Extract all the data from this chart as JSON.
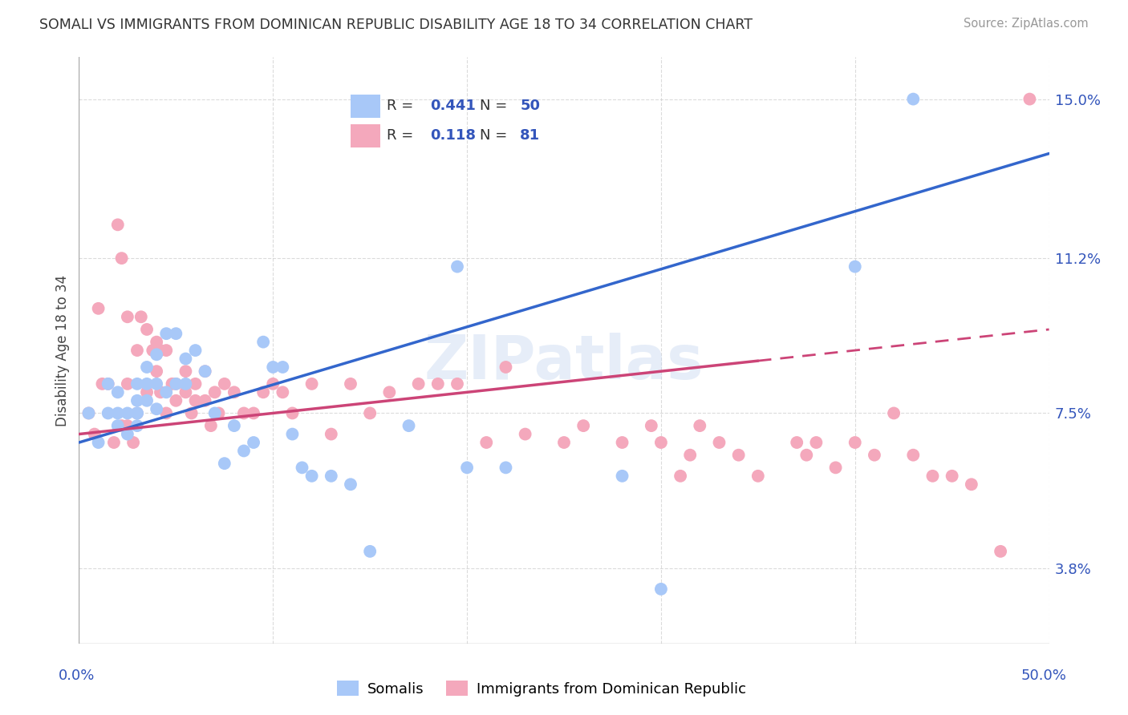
{
  "title": "SOMALI VS IMMIGRANTS FROM DOMINICAN REPUBLIC DISABILITY AGE 18 TO 34 CORRELATION CHART",
  "source": "Source: ZipAtlas.com",
  "ylabel": "Disability Age 18 to 34",
  "xlim": [
    0.0,
    0.5
  ],
  "ylim": [
    0.02,
    0.16
  ],
  "yticks": [
    0.038,
    0.075,
    0.112,
    0.15
  ],
  "yticklabels": [
    "3.8%",
    "7.5%",
    "11.2%",
    "15.0%"
  ],
  "xtick_show": [
    0.0,
    0.5
  ],
  "xticklabels": [
    "0.0%",
    "50.0%"
  ],
  "somali_R": "0.441",
  "somali_N": "50",
  "dr_R": "0.118",
  "dr_N": "81",
  "somali_color": "#a8c8f8",
  "dr_color": "#f4a8bc",
  "somali_line_color": "#3366cc",
  "dr_line_color": "#cc4477",
  "legend_text_color": "#3355bb",
  "background_color": "#ffffff",
  "grid_color": "#cccccc",
  "watermark": "ZIPatlas",
  "watermark_color": "#c8d8f0",
  "somali_line_y0": 0.068,
  "somali_line_y1": 0.137,
  "dr_line_y0": 0.07,
  "dr_line_y1": 0.095,
  "somali_x": [
    0.005,
    0.01,
    0.015,
    0.015,
    0.02,
    0.02,
    0.02,
    0.025,
    0.025,
    0.03,
    0.03,
    0.03,
    0.03,
    0.03,
    0.035,
    0.035,
    0.035,
    0.04,
    0.04,
    0.04,
    0.045,
    0.045,
    0.05,
    0.05,
    0.055,
    0.055,
    0.06,
    0.065,
    0.07,
    0.075,
    0.08,
    0.085,
    0.09,
    0.095,
    0.1,
    0.105,
    0.11,
    0.115,
    0.12,
    0.13,
    0.14,
    0.15,
    0.17,
    0.195,
    0.2,
    0.22,
    0.28,
    0.3,
    0.4,
    0.43
  ],
  "somali_y": [
    0.075,
    0.068,
    0.082,
    0.075,
    0.072,
    0.075,
    0.08,
    0.07,
    0.075,
    0.075,
    0.072,
    0.078,
    0.082,
    0.075,
    0.078,
    0.082,
    0.086,
    0.076,
    0.082,
    0.089,
    0.094,
    0.08,
    0.082,
    0.094,
    0.082,
    0.088,
    0.09,
    0.085,
    0.075,
    0.063,
    0.072,
    0.066,
    0.068,
    0.092,
    0.086,
    0.086,
    0.07,
    0.062,
    0.06,
    0.06,
    0.058,
    0.042,
    0.072,
    0.11,
    0.062,
    0.062,
    0.06,
    0.033,
    0.11,
    0.15
  ],
  "dr_x": [
    0.005,
    0.008,
    0.01,
    0.012,
    0.015,
    0.018,
    0.02,
    0.022,
    0.022,
    0.025,
    0.025,
    0.025,
    0.028,
    0.03,
    0.03,
    0.032,
    0.035,
    0.035,
    0.038,
    0.04,
    0.04,
    0.042,
    0.042,
    0.045,
    0.045,
    0.048,
    0.05,
    0.05,
    0.055,
    0.055,
    0.058,
    0.06,
    0.06,
    0.065,
    0.065,
    0.068,
    0.07,
    0.072,
    0.075,
    0.08,
    0.085,
    0.09,
    0.095,
    0.1,
    0.105,
    0.11,
    0.12,
    0.13,
    0.14,
    0.15,
    0.16,
    0.175,
    0.185,
    0.195,
    0.21,
    0.22,
    0.23,
    0.25,
    0.26,
    0.28,
    0.295,
    0.3,
    0.31,
    0.315,
    0.32,
    0.33,
    0.34,
    0.35,
    0.37,
    0.375,
    0.38,
    0.39,
    0.4,
    0.41,
    0.42,
    0.43,
    0.44,
    0.45,
    0.46,
    0.475,
    0.49
  ],
  "dr_y": [
    0.075,
    0.07,
    0.1,
    0.082,
    0.082,
    0.068,
    0.12,
    0.112,
    0.072,
    0.098,
    0.082,
    0.072,
    0.068,
    0.09,
    0.075,
    0.098,
    0.095,
    0.08,
    0.09,
    0.092,
    0.085,
    0.09,
    0.08,
    0.09,
    0.075,
    0.082,
    0.082,
    0.078,
    0.085,
    0.08,
    0.075,
    0.082,
    0.078,
    0.085,
    0.078,
    0.072,
    0.08,
    0.075,
    0.082,
    0.08,
    0.075,
    0.075,
    0.08,
    0.082,
    0.08,
    0.075,
    0.082,
    0.07,
    0.082,
    0.075,
    0.08,
    0.082,
    0.082,
    0.082,
    0.068,
    0.086,
    0.07,
    0.068,
    0.072,
    0.068,
    0.072,
    0.068,
    0.06,
    0.065,
    0.072,
    0.068,
    0.065,
    0.06,
    0.068,
    0.065,
    0.068,
    0.062,
    0.068,
    0.065,
    0.075,
    0.065,
    0.06,
    0.06,
    0.058,
    0.042,
    0.15
  ]
}
